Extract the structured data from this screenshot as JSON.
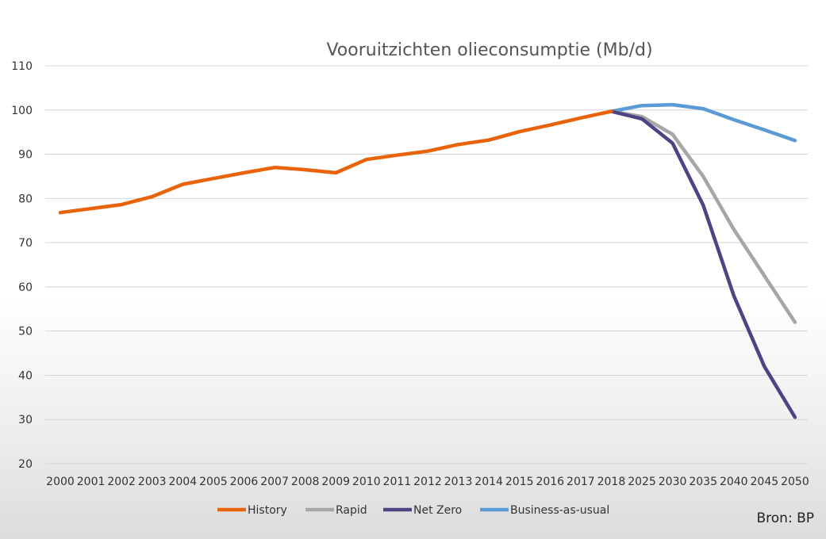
{
  "chart_data": {
    "type": "line",
    "title": "Vooruitzichten olieconsumptie (Mb/d)",
    "xlabel": "",
    "ylabel": "",
    "ylim": [
      20,
      110
    ],
    "y_ticks": [
      20,
      30,
      40,
      50,
      60,
      70,
      80,
      90,
      100,
      110
    ],
    "categories": [
      "2000",
      "2001",
      "2002",
      "2003",
      "2004",
      "2005",
      "2006",
      "2007",
      "2008",
      "2009",
      "2010",
      "2011",
      "2012",
      "2013",
      "2014",
      "2015",
      "2016",
      "2017",
      "2018",
      "2025",
      "2030",
      "2035",
      "2040",
      "2045",
      "2050"
    ],
    "legend_position": "bottom",
    "series": [
      {
        "name": "History",
        "color": "#E8630A",
        "values": [
          76.8,
          77.7,
          78.6,
          80.4,
          83.2,
          84.5,
          85.8,
          87.0,
          86.5,
          85.8,
          88.8,
          89.8,
          90.7,
          92.2,
          93.2,
          95.1,
          96.6,
          98.2,
          99.7,
          null,
          null,
          null,
          null,
          null,
          null
        ]
      },
      {
        "name": "Rapid",
        "color": "#A6A6A6",
        "values": [
          null,
          null,
          null,
          null,
          null,
          null,
          null,
          null,
          null,
          null,
          null,
          null,
          null,
          null,
          null,
          null,
          null,
          null,
          99.7,
          98.5,
          94.5,
          85.0,
          73.0,
          62.5,
          52.0
        ]
      },
      {
        "name": "Net Zero",
        "color": "#4B4583",
        "values": [
          null,
          null,
          null,
          null,
          null,
          null,
          null,
          null,
          null,
          null,
          null,
          null,
          null,
          null,
          null,
          null,
          null,
          null,
          99.7,
          98.0,
          92.5,
          78.5,
          58.0,
          42.0,
          30.5
        ]
      },
      {
        "name": "Business-as-usual",
        "color": "#5B9BD5",
        "values": [
          null,
          null,
          null,
          null,
          null,
          null,
          null,
          null,
          null,
          null,
          null,
          null,
          null,
          null,
          null,
          null,
          null,
          null,
          99.7,
          101.0,
          101.2,
          100.3,
          97.8,
          95.5,
          93.1
        ]
      }
    ],
    "draw_order": [
      "Business-as-usual",
      "Rapid",
      "Net Zero",
      "History"
    ],
    "source": "Bron: BP"
  }
}
